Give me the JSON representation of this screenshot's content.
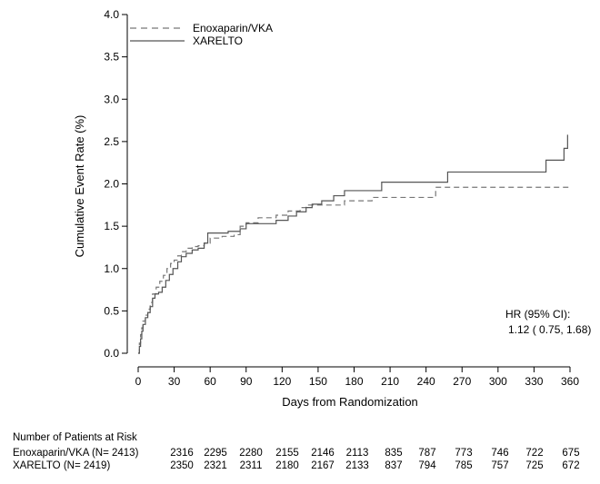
{
  "chart_data": {
    "type": "line",
    "xlabel": "Days from Randomization",
    "ylabel": "Cumulative Event Rate (%)",
    "xlim": [
      0,
      360
    ],
    "ylim": [
      0,
      4.0
    ],
    "x_ticks": [
      0,
      30,
      60,
      90,
      120,
      150,
      180,
      210,
      240,
      270,
      300,
      330,
      360
    ],
    "y_ticks": [
      "0.0",
      "0.5",
      "1.0",
      "1.5",
      "2.0",
      "2.5",
      "3.0",
      "3.5",
      "4.0"
    ],
    "legend_placement": "top-left",
    "series": [
      {
        "name": "Enoxaparin/VKA",
        "style": "dashed",
        "color": "#777777",
        "points": [
          [
            0,
            0
          ],
          [
            1,
            0.12
          ],
          [
            2,
            0.22
          ],
          [
            3,
            0.3
          ],
          [
            4,
            0.38
          ],
          [
            6,
            0.45
          ],
          [
            8,
            0.52
          ],
          [
            10,
            0.6
          ],
          [
            12,
            0.7
          ],
          [
            15,
            0.78
          ],
          [
            18,
            0.85
          ],
          [
            21,
            0.92
          ],
          [
            24,
            1.0
          ],
          [
            27,
            1.06
          ],
          [
            30,
            1.1
          ],
          [
            33,
            1.15
          ],
          [
            36,
            1.2
          ],
          [
            40,
            1.24
          ],
          [
            45,
            1.26
          ],
          [
            50,
            1.27
          ],
          [
            55,
            1.3
          ],
          [
            60,
            1.36
          ],
          [
            70,
            1.38
          ],
          [
            80,
            1.4
          ],
          [
            85,
            1.5
          ],
          [
            90,
            1.54
          ],
          [
            100,
            1.6
          ],
          [
            115,
            1.63
          ],
          [
            125,
            1.68
          ],
          [
            135,
            1.72
          ],
          [
            140,
            1.75
          ],
          [
            172,
            1.8
          ],
          [
            195,
            1.84
          ],
          [
            248,
            1.96
          ],
          [
            360,
            1.96
          ]
        ]
      },
      {
        "name": "XARELTO",
        "style": "solid",
        "color": "#555555",
        "points": [
          [
            0,
            0
          ],
          [
            1,
            0.08
          ],
          [
            2,
            0.17
          ],
          [
            3,
            0.26
          ],
          [
            4,
            0.34
          ],
          [
            6,
            0.42
          ],
          [
            8,
            0.48
          ],
          [
            10,
            0.55
          ],
          [
            12,
            0.65
          ],
          [
            14,
            0.7
          ],
          [
            17,
            0.72
          ],
          [
            20,
            0.78
          ],
          [
            23,
            0.86
          ],
          [
            26,
            0.93
          ],
          [
            29,
            1.0
          ],
          [
            33,
            1.08
          ],
          [
            36,
            1.14
          ],
          [
            40,
            1.18
          ],
          [
            45,
            1.22
          ],
          [
            50,
            1.24
          ],
          [
            55,
            1.3
          ],
          [
            58,
            1.42
          ],
          [
            75,
            1.44
          ],
          [
            85,
            1.47
          ],
          [
            90,
            1.53
          ],
          [
            115,
            1.57
          ],
          [
            125,
            1.62
          ],
          [
            132,
            1.67
          ],
          [
            140,
            1.72
          ],
          [
            145,
            1.76
          ],
          [
            153,
            1.8
          ],
          [
            163,
            1.86
          ],
          [
            172,
            1.92
          ],
          [
            203,
            2.02
          ],
          [
            258,
            2.14
          ],
          [
            340,
            2.28
          ],
          [
            355,
            2.42
          ],
          [
            358,
            2.58
          ]
        ]
      }
    ],
    "annotation": {
      "line1": "HR (95% CI):",
      "line2": "1.12 ( 0.75,  1.68)"
    },
    "risk_table": {
      "title": "Number of Patients at Risk",
      "rows": [
        {
          "label": "Enoxaparin/VKA (N= 2413)",
          "values": [
            "2316",
            "2295",
            "2280",
            "2155",
            "2146",
            "2113",
            "835",
            "787",
            "773",
            "746",
            "722",
            "675"
          ]
        },
        {
          "label": "XARELTO (N= 2419)",
          "values": [
            "2350",
            "2321",
            "2311",
            "2180",
            "2167",
            "2133",
            "837",
            "794",
            "785",
            "757",
            "725",
            "672"
          ]
        }
      ]
    }
  }
}
